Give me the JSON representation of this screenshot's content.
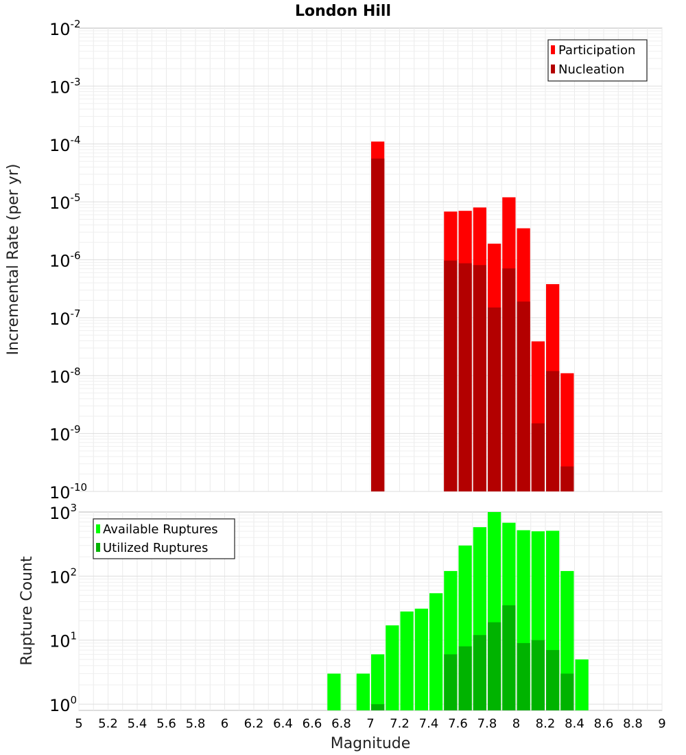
{
  "chart_data": [
    {
      "type": "bar",
      "title": "London Hill",
      "xlabel": "",
      "ylabel": "Incremental Rate (per yr)",
      "yscale": "log",
      "ylim_exponents": [
        -10,
        -2
      ],
      "y_tick_exponents": [
        -10,
        -9,
        -8,
        -7,
        -6,
        -5,
        -4,
        -3,
        -2
      ],
      "y_tick_base": "10",
      "xlim": [
        5,
        9
      ],
      "bar_width": 0.1,
      "grid": true,
      "legend_position": "top-right",
      "series": [
        {
          "name": "Participation",
          "color": "#ff0000",
          "points": [
            [
              7.05,
              0.00011
            ],
            [
              7.55,
              6.8e-06
            ],
            [
              7.65,
              7e-06
            ],
            [
              7.75,
              8e-06
            ],
            [
              7.85,
              1.9e-06
            ],
            [
              7.95,
              1.2e-05
            ],
            [
              8.05,
              3.5e-06
            ],
            [
              8.15,
              3.9e-08
            ],
            [
              8.25,
              3.8e-07
            ],
            [
              8.35,
              1.1e-08
            ]
          ]
        },
        {
          "name": "Nucleation",
          "color": "#b30000",
          "points": [
            [
              7.05,
              5.6e-05
            ],
            [
              7.55,
              9.7e-07
            ],
            [
              7.65,
              8.7e-07
            ],
            [
              7.75,
              8.1e-07
            ],
            [
              7.85,
              1.5e-07
            ],
            [
              7.95,
              7.1e-07
            ],
            [
              8.05,
              1.9e-07
            ],
            [
              8.15,
              1.5e-09
            ],
            [
              8.25,
              1.2e-08
            ],
            [
              8.35,
              2.7e-10
            ]
          ]
        }
      ]
    },
    {
      "type": "bar",
      "title": "",
      "xlabel": "Magnitude",
      "ylabel": "Rupture Count",
      "yscale": "log",
      "ylim": [
        0.8,
        1000
      ],
      "y_tick_exponents": [
        0,
        1,
        2,
        3
      ],
      "y_tick_base": "10",
      "xlim": [
        5,
        9
      ],
      "x_ticks": [
        "5",
        "5.2",
        "5.4",
        "5.6",
        "5.8",
        "6",
        "6.2",
        "6.4",
        "6.6",
        "6.8",
        "7",
        "7.2",
        "7.4",
        "7.6",
        "7.8",
        "8",
        "8.2",
        "8.4",
        "8.6",
        "8.8",
        "9"
      ],
      "bar_width": 0.1,
      "grid": true,
      "legend_position": "top-left",
      "series": [
        {
          "name": "Available Ruptures",
          "color": "#00ff00",
          "points": [
            [
              6.75,
              3
            ],
            [
              6.95,
              3
            ],
            [
              7.05,
              6
            ],
            [
              7.15,
              17
            ],
            [
              7.25,
              28
            ],
            [
              7.35,
              31
            ],
            [
              7.45,
              54
            ],
            [
              7.55,
              120
            ],
            [
              7.65,
              300
            ],
            [
              7.75,
              580
            ],
            [
              7.85,
              1000
            ],
            [
              7.95,
              680
            ],
            [
              8.05,
              520
            ],
            [
              8.15,
              500
            ],
            [
              8.25,
              510
            ],
            [
              8.35,
              120
            ],
            [
              8.45,
              5
            ]
          ]
        },
        {
          "name": "Utilized Ruptures",
          "color": "#00b300",
          "points": [
            [
              7.05,
              1
            ],
            [
              7.55,
              6
            ],
            [
              7.65,
              8
            ],
            [
              7.75,
              12
            ],
            [
              7.85,
              19
            ],
            [
              7.95,
              35
            ],
            [
              8.05,
              9
            ],
            [
              8.15,
              10
            ],
            [
              8.25,
              7
            ],
            [
              8.35,
              3
            ]
          ]
        }
      ]
    }
  ]
}
